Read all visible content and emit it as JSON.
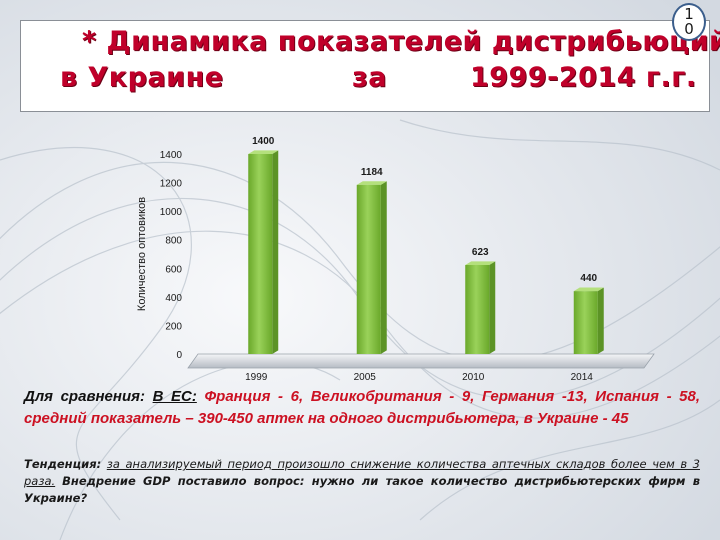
{
  "title": {
    "prefix": "*",
    "line1": "Динамика показателей дистрибьюций",
    "line2_a": "в Украине",
    "line2_b": "за",
    "line2_c": "1999-2014 г.г."
  },
  "slide_number": {
    "digit1": "1",
    "digit2": "0"
  },
  "chart_data": {
    "type": "bar",
    "categories": [
      "1999",
      "2005",
      "2010",
      "2014"
    ],
    "values": [
      1400,
      1184,
      623,
      440
    ],
    "data_labels": [
      "1400",
      "1184",
      "623",
      "440"
    ],
    "title": "",
    "xlabel": "",
    "ylabel": "Количество оптовиков",
    "ylim": [
      0,
      1400
    ],
    "yticks": [
      "0",
      "200",
      "400",
      "600",
      "800",
      "1000",
      "1200",
      "1400"
    ],
    "grid": false,
    "legend": "none",
    "bar_color": "#7ec038"
  },
  "comparison": {
    "lead": "Для сравнения:",
    "eu": "В ЕС:",
    "text": "Франция - 6, Великобритания - 9, Германия -13, Испания - 58, средний показатель – 390-450 аптек на одного дистрибьютера, в Украине - 45"
  },
  "tendency": {
    "lead": "Тенденция:",
    "underlined": "за анализируемый период произошло снижение количества аптечных складов более чем в 3 раза.",
    "bold_rest": "Внедрение GDP поставило вопрос: нужно ли такое количество дистрибьютерских фирм в Украине?"
  },
  "colors": {
    "title": "#c0002a",
    "accent_text": "#cc1122",
    "bar": "#7ec038"
  }
}
